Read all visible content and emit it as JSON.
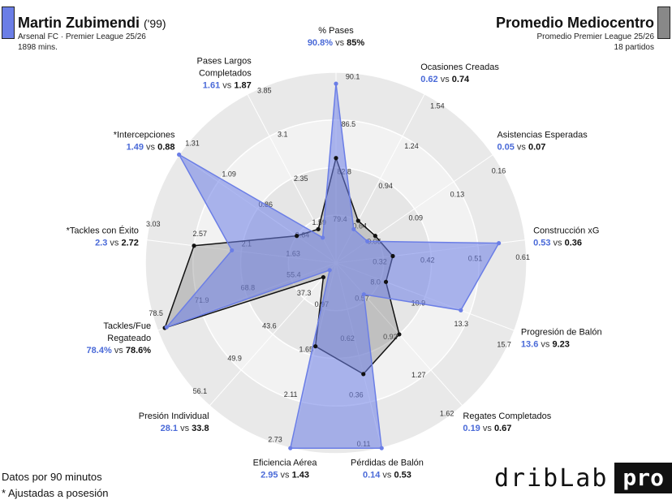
{
  "header": {
    "player_name": "Martin Zubimendi",
    "player_year": "('99)",
    "player_team": "Arsenal FC · Premier League 25/26",
    "player_minutes": "1898 mins.",
    "avg_name": "Promedio Mediocentro",
    "avg_league": "Promedio Premier League 25/26",
    "avg_matches": "18 partidos"
  },
  "footer": {
    "note1": "Datos por 90 minutos",
    "note2": "* Ajustadas a posesión",
    "logo_text": "dribLab",
    "logo_badge": "pro"
  },
  "colors": {
    "player": "#6b7ee6",
    "player_fill": "#6b7ee6",
    "average": "#111111",
    "label_blue": "#4a6ad8"
  },
  "chart_data": {
    "type": "radar",
    "series": [
      {
        "name": "Martin Zubimendi"
      },
      {
        "name": "Promedio Mediocentro"
      }
    ],
    "axes": [
      {
        "label": [
          "% Pases"
        ],
        "player": "90.8%",
        "avg": "85%",
        "ticks": [
          "79.4",
          "82.8",
          "86.5",
          "90.1"
        ],
        "p": 0.94,
        "a": 0.55
      },
      {
        "label": [
          "Ocasiones Creadas"
        ],
        "player": "0.62",
        "avg": "0.74",
        "ticks": [
          "0.64",
          "0.94",
          "1.24",
          "1.54"
        ],
        "p": 0.2,
        "a": 0.25
      },
      {
        "label": [
          "Asistencias Esperadas"
        ],
        "player": "0.05",
        "avg": "0.07",
        "ticks": [
          "0.06",
          "0.09",
          "0.13",
          "0.16"
        ],
        "p": 0.2,
        "a": 0.25
      },
      {
        "label": [
          "Construcción xG"
        ],
        "player": "0.53",
        "avg": "0.36",
        "ticks": [
          "0.32",
          "0.42",
          "0.51",
          "0.61"
        ],
        "p": 0.86,
        "a": 0.3
      },
      {
        "label": [
          "Progresión de Balón"
        ],
        "player": "13.6",
        "avg": "9.23",
        "ticks": [
          "8.0",
          "10.9",
          "13.3",
          "15.7"
        ],
        "p": 0.7,
        "a": 0.28
      },
      {
        "label": [
          "Regates Completados"
        ],
        "player": "0.19",
        "avg": "0.67",
        "ticks": [
          "0.57",
          "0.92",
          "1.27",
          "1.62"
        ],
        "p": 0.22,
        "a": 0.5
      },
      {
        "label": [
          "Pérdidas de Balón"
        ],
        "player": "0.14",
        "avg": "0.53",
        "ticks": [
          "0.62",
          "0.36",
          "0.11"
        ],
        "tickPos": [
          0.4,
          0.7,
          0.96
        ],
        "p": 1.0,
        "a": 0.6
      },
      {
        "label": [
          "Eficiencia Aérea"
        ],
        "player": "2.95",
        "avg": "1.43",
        "ticks": [
          "0.97",
          "1.65",
          "2.11",
          "2.73"
        ],
        "p": 1.0,
        "a": 0.45
      },
      {
        "label": [
          "Presión Individual"
        ],
        "player": "28.1",
        "avg": "33.8",
        "ticks": [
          "37.3",
          "43.6",
          "49.9",
          "56.1"
        ],
        "p": 0.05,
        "a": 0.1
      },
      {
        "label": [
          "Tackles/Fue",
          "Regateado"
        ],
        "player": "78.4%",
        "avg": "78.6%",
        "ticks": [
          "55.4",
          "68.8",
          "71.9",
          "78.5"
        ],
        "p": 0.95,
        "a": 0.96
      },
      {
        "label": [
          "*Tackles con Éxito"
        ],
        "player": "2.3",
        "avg": "2.72",
        "ticks": [
          "1.63",
          "2.1",
          "2.57",
          "3.03"
        ],
        "p": 0.55,
        "a": 0.75
      },
      {
        "label": [
          "*Intercepciones"
        ],
        "player": "1.49",
        "avg": "0.88",
        "ticks": [
          "0.64",
          "0.86",
          "1.09",
          "1.31"
        ],
        "p": 1.0,
        "a": 0.25
      },
      {
        "label": [
          "Pases Largos",
          "Completados"
        ],
        "player": "1.61",
        "avg": "1.87",
        "ticks": [
          "1.59",
          "2.35",
          "3.1",
          "3.85"
        ],
        "p": 0.15,
        "a": 0.2
      }
    ]
  }
}
